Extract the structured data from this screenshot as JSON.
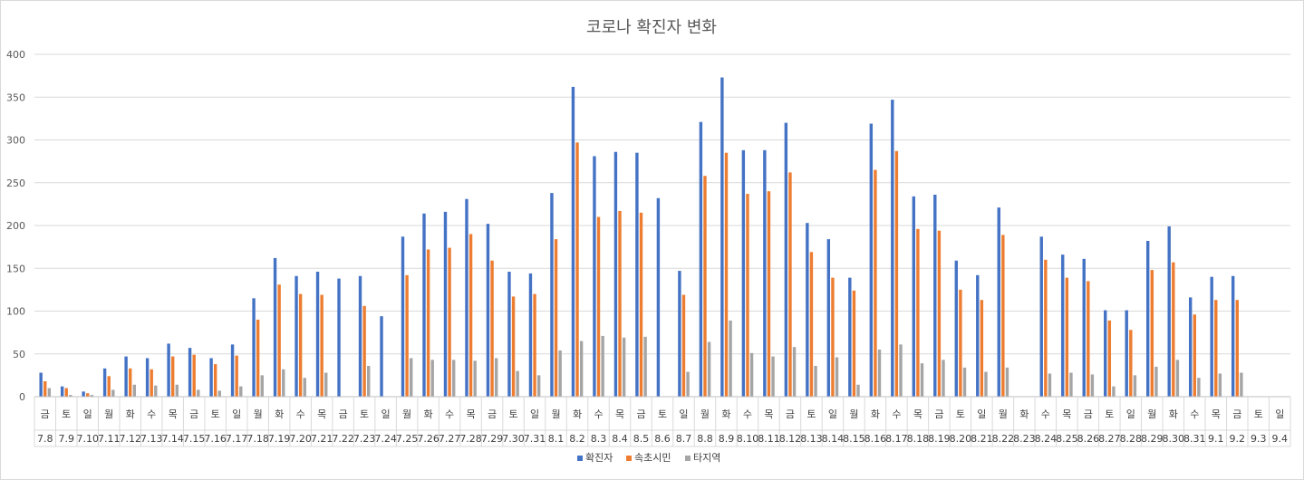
{
  "chart_data": {
    "type": "bar",
    "title": "코로나 확진자 변화",
    "xlabel": "",
    "ylabel": "",
    "ylim": [
      0,
      400
    ],
    "yticks": [
      0,
      50,
      100,
      150,
      200,
      250,
      300,
      350,
      400
    ],
    "grid": true,
    "legend_position": "bottom",
    "days": [
      "금",
      "토",
      "일",
      "월",
      "화",
      "수",
      "목",
      "금",
      "토",
      "일",
      "월",
      "화",
      "수",
      "목",
      "금",
      "토",
      "일",
      "월",
      "화",
      "수",
      "목",
      "금",
      "토",
      "일",
      "월",
      "화",
      "수",
      "목",
      "금",
      "토",
      "일",
      "월",
      "화",
      "수",
      "목",
      "금",
      "토",
      "일",
      "월",
      "화",
      "수",
      "목",
      "금",
      "토",
      "일",
      "월",
      "화",
      "수",
      "목",
      "금",
      "토",
      "일",
      "월",
      "화",
      "수",
      "목",
      "금",
      "토",
      "일"
    ],
    "categories": [
      "7.8",
      "7.9",
      "7.10",
      "7.11",
      "7.12",
      "7.13",
      "7.14",
      "7.15",
      "7.16",
      "7.17",
      "7.18",
      "7.19",
      "7.20",
      "7.21",
      "7.22",
      "7.23",
      "7.24",
      "7.25",
      "7.26",
      "7.27",
      "7.28",
      "7.29",
      "7.30",
      "7.31",
      "8.1",
      "8.2",
      "8.3",
      "8.4",
      "8.5",
      "8.6",
      "8.7",
      "8.8",
      "8.9",
      "8.10",
      "8.11",
      "8.12",
      "8.13",
      "8.14",
      "8.15",
      "8.16",
      "8.17",
      "8.18",
      "8.19",
      "8.20",
      "8.21",
      "8.22",
      "8.23",
      "8.24",
      "8.25",
      "8.26",
      "8.27",
      "8.28",
      "8.29",
      "8.30",
      "8.31",
      "9.1",
      "9.2",
      "9.3",
      "9.4"
    ],
    "series": [
      {
        "name": "확진자",
        "color": "#4472c4",
        "values": [
          28,
          12,
          6,
          33,
          47,
          45,
          62,
          57,
          45,
          61,
          115,
          162,
          141,
          146,
          138,
          141,
          94,
          187,
          214,
          216,
          231,
          202,
          146,
          144,
          238,
          362,
          281,
          286,
          285,
          232,
          147,
          321,
          373,
          288,
          288,
          320,
          203,
          184,
          139,
          319,
          347,
          234,
          236,
          159,
          142,
          221,
          0,
          187,
          166,
          161,
          101,
          101,
          182,
          199,
          116,
          140,
          141,
          0,
          0
        ]
      },
      {
        "name": "속초시민",
        "color": "#ed7d31",
        "values": [
          18,
          10,
          4,
          24,
          33,
          32,
          47,
          49,
          38,
          48,
          90,
          131,
          120,
          119,
          0,
          106,
          0,
          142,
          172,
          174,
          190,
          159,
          117,
          120,
          184,
          297,
          210,
          217,
          215,
          0,
          119,
          258,
          285,
          237,
          240,
          262,
          169,
          139,
          124,
          265,
          287,
          196,
          194,
          125,
          113,
          189,
          0,
          160,
          139,
          135,
          89,
          78,
          148,
          157,
          96,
          113,
          113,
          0,
          0
        ]
      },
      {
        "name": "타지역",
        "color": "#a5a5a5",
        "values": [
          10,
          2,
          2,
          8,
          14,
          13,
          14,
          8,
          7,
          12,
          25,
          32,
          22,
          28,
          0,
          36,
          0,
          45,
          43,
          43,
          42,
          45,
          30,
          25,
          54,
          65,
          71,
          69,
          70,
          0,
          29,
          64,
          89,
          51,
          47,
          58,
          36,
          46,
          14,
          55,
          61,
          39,
          43,
          34,
          29,
          34,
          0,
          27,
          28,
          26,
          12,
          25,
          35,
          43,
          22,
          27,
          28,
          0,
          0
        ]
      }
    ]
  }
}
